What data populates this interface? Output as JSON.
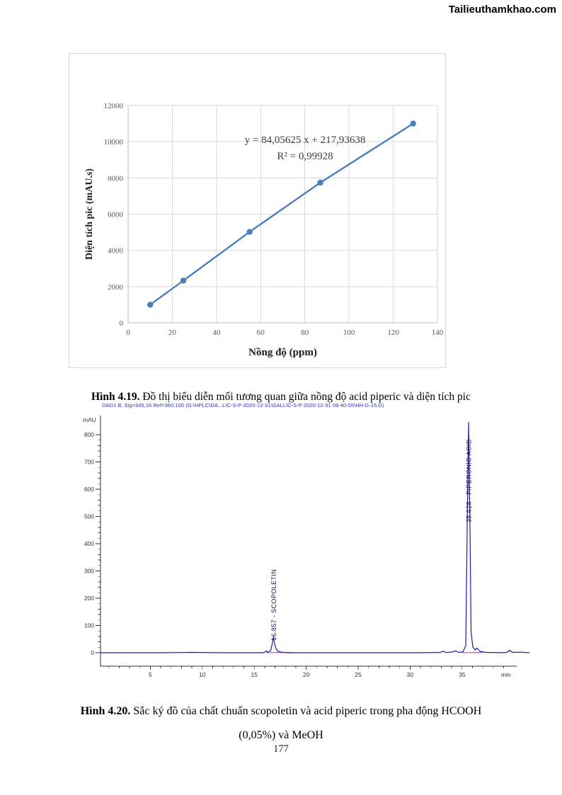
{
  "watermark": "Tailieuthamkhao.com",
  "page_number": "177",
  "captions": {
    "fig419_label": "Hình 4.19.",
    "fig419_text": " Đồ thị biểu diễn mối tương quan giữa nồng độ acid piperic và diện tích pic",
    "fig420_label": "Hình 4.20.",
    "fig420_text": " Sắc ký đồ của chất chuẩn scopoletin và acid piperic trong pha động HCOOH",
    "fig420_line2": "(0,05%) và MeOH"
  },
  "chart_data": [
    {
      "id": "calibration-curve",
      "type": "scatter",
      "x": [
        10,
        25,
        55,
        87,
        129
      ],
      "y": [
        1000,
        2330,
        5020,
        7740,
        11000
      ],
      "equation": "y = 84,05625 x + 217,93638",
      "r2": "R² = 0,99928",
      "xlabel": "Nồng độ (ppm)",
      "ylabel": "Diện tích pic (mAU.s)",
      "xlim": [
        0,
        140
      ],
      "x_step": 20,
      "ylim": [
        0,
        12000
      ],
      "y_step": 2000,
      "grid": true,
      "legend_position": "none",
      "series_color": "#4a7ebb",
      "grid_color": "#d9d9d9",
      "axis_line_color": "#bfbfbf",
      "tick_label_color": "#595959",
      "annotation_color": "#3f3f3f"
    },
    {
      "id": "hplc-chromatogram",
      "type": "line",
      "title": "DAD1 B, Sig=345,16 Ref=360,100 (G:\\HPLC\\DA...LIC-S-P-2020-12-31\\GALLIC-S-P 2020-12-31 08-40-55\\HH G-15.D)",
      "ylabel": "mAU",
      "xlabel": "min",
      "xlim": [
        0,
        40
      ],
      "x_major_step": 5,
      "x_minor_step": 1,
      "x_tick_labels": [
        5,
        10,
        15,
        20,
        25,
        30,
        35
      ],
      "ylim": [
        0,
        870
      ],
      "y_major_step": 100,
      "y_minor_step": 20,
      "y_tick_labels": [
        0,
        100,
        200,
        300,
        400,
        500,
        600,
        700,
        800
      ],
      "baseline_mau": 0,
      "peaks": [
        {
          "retention_time": 16.857,
          "compound": "SCOPOLETIN",
          "label": "16.857 - SCOPOLETIN",
          "height_mau": 58
        },
        {
          "retention_time": 35.628,
          "compound": "PIPERONIC ACID",
          "label": "35.628 - PIPERONIC ACID",
          "height_mau": 845
        }
      ],
      "title_color": "#3333cc",
      "signal_color": "#1c1ca8",
      "integration_color": "#cf6fcf",
      "peak_label_color": "#15154d",
      "axis_color": "#333333",
      "grid": false,
      "legend_position": "none"
    }
  ]
}
